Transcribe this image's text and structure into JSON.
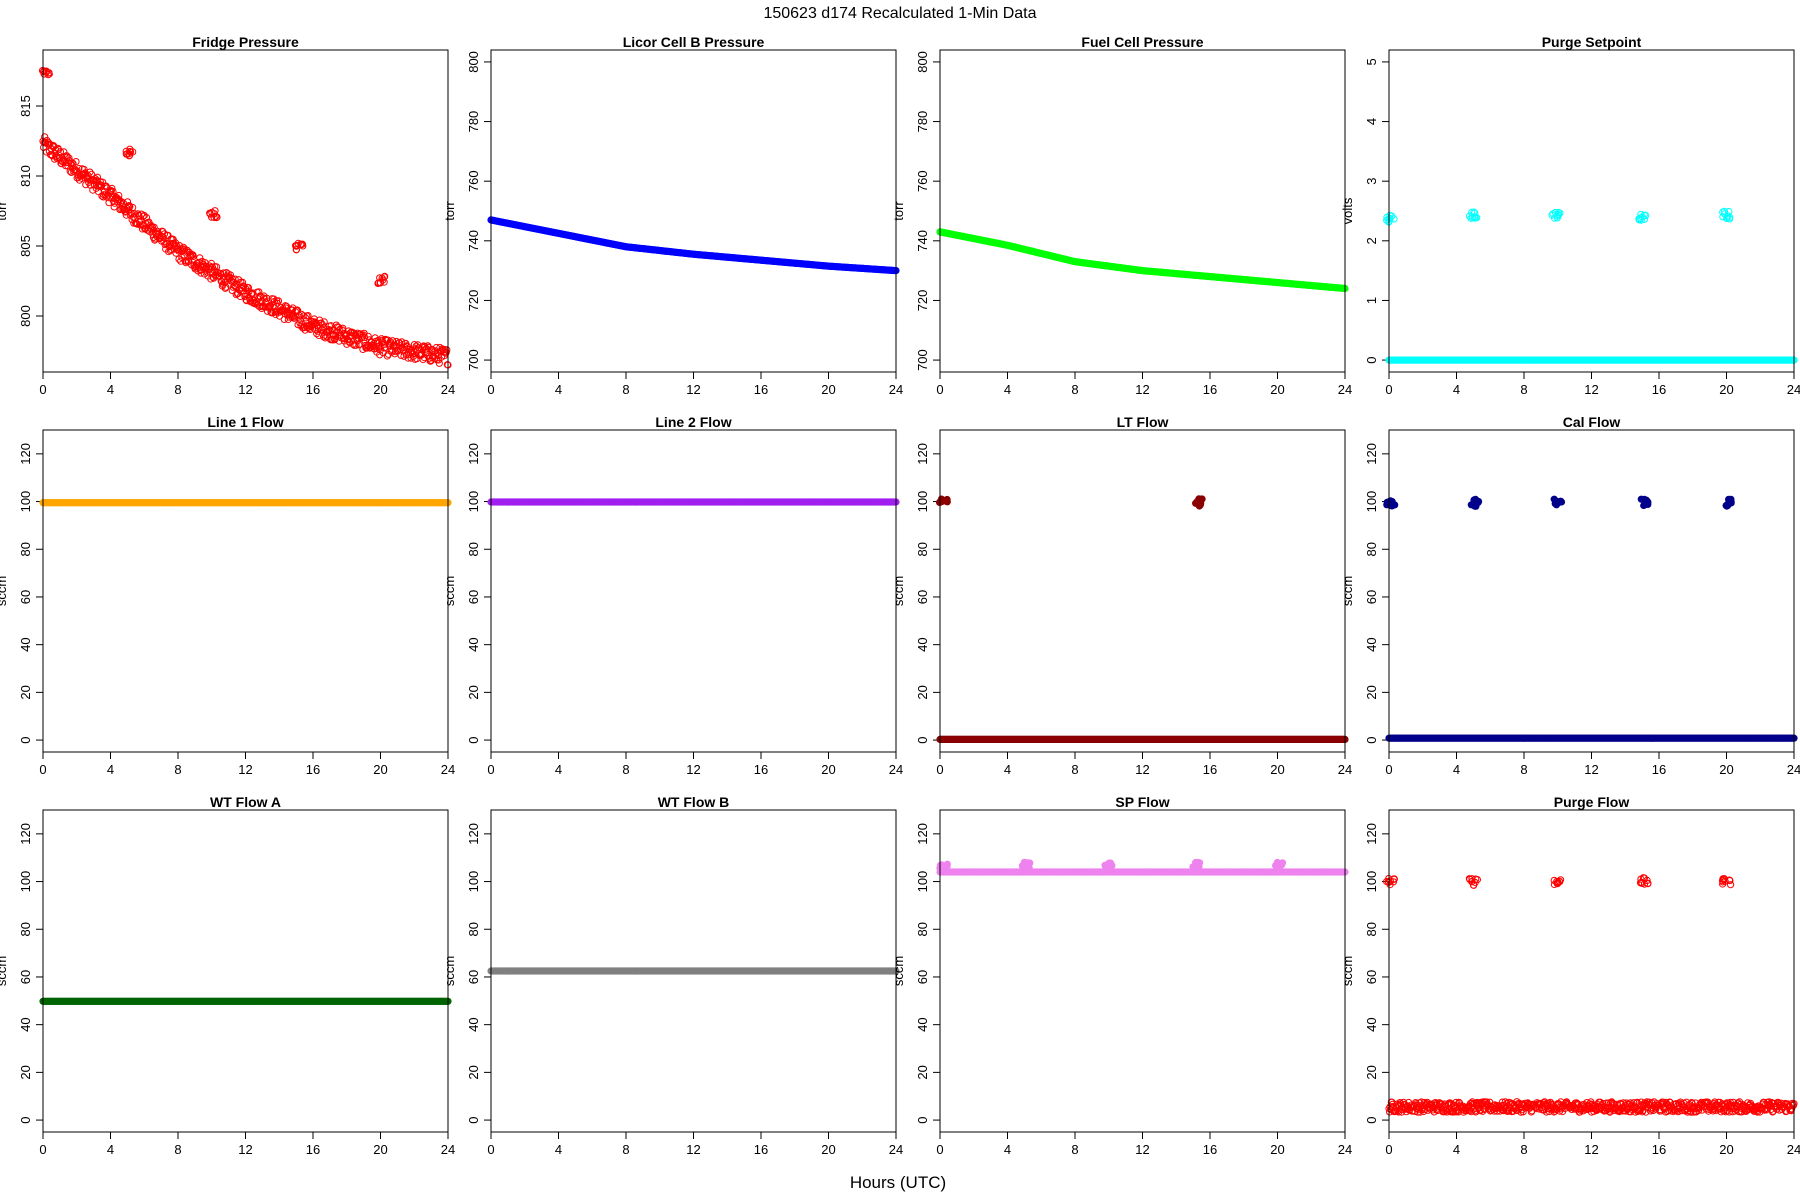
{
  "figure": {
    "title": "150623   d174   Recalculated 1-Min Data",
    "xlabel": "Hours (UTC)"
  },
  "chart_data": [
    {
      "id": "fridge",
      "type": "scatter",
      "title": "Fridge Pressure",
      "ylabel": "torr",
      "color": "#ff0000",
      "filled": false,
      "xlim": [
        0,
        24
      ],
      "ylim": [
        796,
        819
      ],
      "xticks": [
        0,
        4,
        8,
        12,
        16,
        20,
        24
      ],
      "yticks": [
        800,
        805,
        810,
        815
      ],
      "baseline": {
        "x": [
          0,
          4,
          8,
          12,
          16,
          20,
          24
        ],
        "y": [
          812.3,
          808.6,
          804.6,
          801.7,
          799.3,
          797.8,
          797.1
        ],
        "noise": 0.6
      },
      "clusters": [
        {
          "x": 0.2,
          "y": 817.5
        },
        {
          "x": 5.1,
          "y": 811.7
        },
        {
          "x": 10.1,
          "y": 807.3
        },
        {
          "x": 15.2,
          "y": 805.0
        },
        {
          "x": 20.1,
          "y": 802.6
        }
      ]
    },
    {
      "id": "licor",
      "type": "scatter",
      "title": "Licor Cell B Pressure",
      "ylabel": "torr",
      "color": "#0000ff",
      "filled": true,
      "xlim": [
        0,
        24
      ],
      "ylim": [
        696,
        804
      ],
      "xticks": [
        0,
        4,
        8,
        12,
        16,
        20,
        24
      ],
      "yticks": [
        700,
        720,
        740,
        760,
        780,
        800
      ],
      "baseline": {
        "x": [
          0,
          4,
          8,
          12,
          16,
          20,
          24
        ],
        "y": [
          747,
          742.5,
          738,
          735.5,
          733.5,
          731.5,
          730
        ],
        "noise": 0
      },
      "clusters": []
    },
    {
      "id": "fuel",
      "type": "scatter",
      "title": "Fuel Cell Pressure",
      "ylabel": "torr",
      "color": "#00ff00",
      "filled": true,
      "xlim": [
        0,
        24
      ],
      "ylim": [
        696,
        804
      ],
      "xticks": [
        0,
        4,
        8,
        12,
        16,
        20,
        24
      ],
      "yticks": [
        700,
        720,
        740,
        760,
        780,
        800
      ],
      "baseline": {
        "x": [
          0,
          4,
          8,
          12,
          16,
          20,
          24
        ],
        "y": [
          743,
          738.5,
          733,
          730,
          728,
          726,
          724
        ],
        "noise": 0
      },
      "clusters": []
    },
    {
      "id": "purge_sp",
      "type": "scatter",
      "title": "Purge Setpoint",
      "ylabel": "volts",
      "color": "#00ffff",
      "filled": false,
      "xlim": [
        0,
        24
      ],
      "ylim": [
        -0.2,
        5.2
      ],
      "xticks": [
        0,
        4,
        8,
        12,
        16,
        20,
        24
      ],
      "yticks": [
        0,
        1,
        2,
        3,
        4,
        5
      ],
      "baseline": {
        "x": [
          0,
          24
        ],
        "y": [
          0,
          0
        ],
        "noise": 0
      },
      "clusters": [
        {
          "x": 0.1,
          "y": 2.37
        },
        {
          "x": 5.0,
          "y": 2.42
        },
        {
          "x": 9.9,
          "y": 2.42
        },
        {
          "x": 15.0,
          "y": 2.41
        },
        {
          "x": 20.0,
          "y": 2.43
        }
      ]
    },
    {
      "id": "line1",
      "type": "scatter",
      "title": "Line 1 Flow",
      "ylabel": "sccm",
      "color": "#ffa500",
      "filled": true,
      "xlim": [
        0,
        24
      ],
      "ylim": [
        -5,
        130
      ],
      "xticks": [
        0,
        4,
        8,
        12,
        16,
        20,
        24
      ],
      "yticks": [
        0,
        20,
        40,
        60,
        80,
        100,
        120
      ],
      "baseline": {
        "x": [
          0,
          24
        ],
        "y": [
          99.5,
          99.5
        ],
        "noise": 0
      },
      "clusters": []
    },
    {
      "id": "line2",
      "type": "scatter",
      "title": "Line 2 Flow",
      "ylabel": "sccm",
      "color": "#a020f0",
      "filled": true,
      "xlim": [
        0,
        24
      ],
      "ylim": [
        -5,
        130
      ],
      "xticks": [
        0,
        4,
        8,
        12,
        16,
        20,
        24
      ],
      "yticks": [
        0,
        20,
        40,
        60,
        80,
        100,
        120
      ],
      "baseline": {
        "x": [
          0,
          24
        ],
        "y": [
          99.8,
          99.8
        ],
        "noise": 0
      },
      "clusters": []
    },
    {
      "id": "lt",
      "type": "scatter",
      "title": "LT Flow",
      "ylabel": "sccm",
      "color": "#8b0000",
      "filled": true,
      "xlim": [
        0,
        24
      ],
      "ylim": [
        -5,
        130
      ],
      "xticks": [
        0,
        4,
        8,
        12,
        16,
        20,
        24
      ],
      "yticks": [
        0,
        20,
        40,
        60,
        80,
        100,
        120
      ],
      "baseline": {
        "x": [
          0,
          24
        ],
        "y": [
          0.3,
          0.3
        ],
        "noise": 0
      },
      "clusters": [
        {
          "x": 0.2,
          "y": 99.6
        },
        {
          "x": 15.3,
          "y": 99.6
        }
      ]
    },
    {
      "id": "cal",
      "type": "scatter",
      "title": "Cal Flow",
      "ylabel": "sccm",
      "color": "#00008b",
      "filled": true,
      "xlim": [
        0,
        24
      ],
      "ylim": [
        -5,
        130
      ],
      "xticks": [
        0,
        4,
        8,
        12,
        16,
        20,
        24
      ],
      "yticks": [
        0,
        20,
        40,
        60,
        80,
        100,
        120
      ],
      "baseline": {
        "x": [
          0,
          24
        ],
        "y": [
          0.8,
          0.8
        ],
        "noise": 0
      },
      "clusters": [
        {
          "x": 0.1,
          "y": 99.6
        },
        {
          "x": 5.1,
          "y": 99.6
        },
        {
          "x": 10.0,
          "y": 99.6
        },
        {
          "x": 15.2,
          "y": 99.6
        },
        {
          "x": 20.1,
          "y": 99.6
        }
      ]
    },
    {
      "id": "wta",
      "type": "scatter",
      "title": "WT Flow A",
      "ylabel": "sccm",
      "color": "#006400",
      "filled": true,
      "xlim": [
        0,
        24
      ],
      "ylim": [
        -5,
        130
      ],
      "xticks": [
        0,
        4,
        8,
        12,
        16,
        20,
        24
      ],
      "yticks": [
        0,
        20,
        40,
        60,
        80,
        100,
        120
      ],
      "baseline": {
        "x": [
          0,
          24
        ],
        "y": [
          49.8,
          49.8
        ],
        "noise": 0
      },
      "clusters": []
    },
    {
      "id": "wtb",
      "type": "scatter",
      "title": "WT Flow B",
      "ylabel": "sccm",
      "color": "#808080",
      "filled": true,
      "xlim": [
        0,
        24
      ],
      "ylim": [
        -5,
        130
      ],
      "xticks": [
        0,
        4,
        8,
        12,
        16,
        20,
        24
      ],
      "yticks": [
        0,
        20,
        40,
        60,
        80,
        100,
        120
      ],
      "baseline": {
        "x": [
          0,
          24
        ],
        "y": [
          62.5,
          62.5
        ],
        "noise": 0
      },
      "clusters": []
    },
    {
      "id": "sp",
      "type": "scatter",
      "title": "SP Flow",
      "ylabel": "sccm",
      "color": "#ee82ee",
      "filled": true,
      "xlim": [
        0,
        24
      ],
      "ylim": [
        -5,
        130
      ],
      "xticks": [
        0,
        4,
        8,
        12,
        16,
        20,
        24
      ],
      "yticks": [
        0,
        20,
        40,
        60,
        80,
        100,
        120
      ],
      "baseline": {
        "x": [
          0,
          24
        ],
        "y": [
          104,
          104
        ],
        "noise": 0
      },
      "clusters": [
        {
          "x": 0.2,
          "y": 106.5
        },
        {
          "x": 5.1,
          "y": 106.5
        },
        {
          "x": 10.0,
          "y": 106.5
        },
        {
          "x": 15.2,
          "y": 106.5
        },
        {
          "x": 20.1,
          "y": 106.5
        }
      ]
    },
    {
      "id": "purge_flow",
      "type": "scatter",
      "title": "Purge Flow",
      "ylabel": "sccm",
      "color": "#ff0000",
      "filled": false,
      "xlim": [
        0,
        24
      ],
      "ylim": [
        -5,
        130
      ],
      "xticks": [
        0,
        4,
        8,
        12,
        16,
        20,
        24
      ],
      "yticks": [
        0,
        20,
        40,
        60,
        80,
        100,
        120
      ],
      "baseline": {
        "x": [
          0,
          24
        ],
        "y": [
          5.5,
          5.5
        ],
        "noise": 2.2
      },
      "clusters": [
        {
          "x": 0.1,
          "y": 100
        },
        {
          "x": 5.0,
          "y": 100
        },
        {
          "x": 10.0,
          "y": 100
        },
        {
          "x": 15.1,
          "y": 100
        },
        {
          "x": 20.0,
          "y": 100
        }
      ]
    }
  ]
}
